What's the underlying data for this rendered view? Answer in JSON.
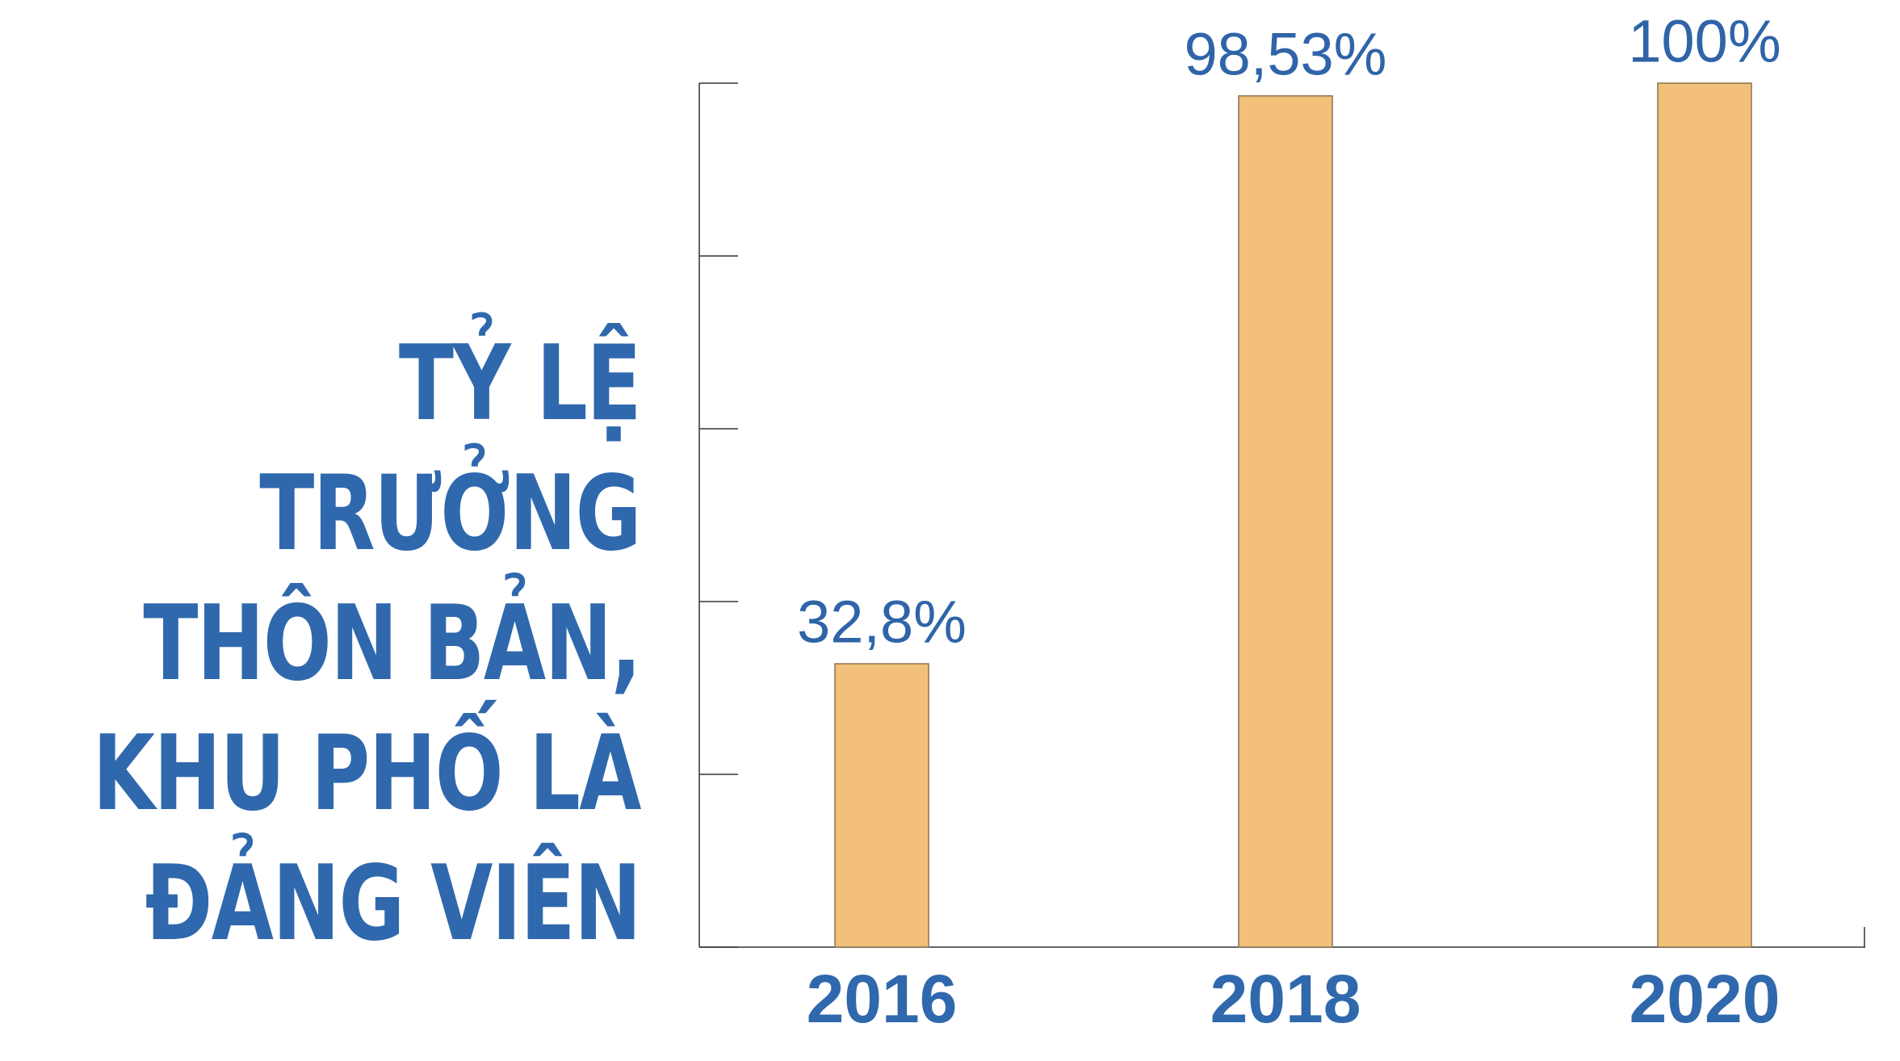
{
  "chart_data": {
    "type": "bar",
    "title": "TỶ LỆ\nTRƯỞNG\nTHÔN BẢN,\nKHU PHỐ LÀ\nĐẢNG VIÊN",
    "categories": [
      "2016",
      "2018",
      "2020"
    ],
    "values": [
      32.8,
      98.53,
      100
    ],
    "value_labels": [
      "32,8%",
      "98,53%",
      "100%"
    ],
    "color": "#f2c07a",
    "ylim": [
      0,
      100
    ],
    "yticks": [
      0,
      20,
      40,
      60,
      80,
      100
    ],
    "grid": false
  }
}
